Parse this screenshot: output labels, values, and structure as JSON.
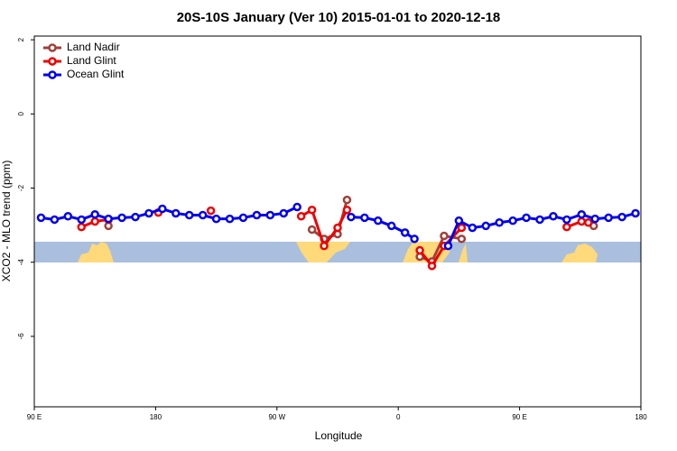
{
  "chart_data": {
    "type": "line",
    "title": "20S-10S January (Ver 10)   2015-01-01 to 2020-12-18",
    "x_label": "Longitude",
    "y_label": "XCO2 - MLO trend (ppm)",
    "xlim": [
      90,
      540
    ],
    "xticks": [
      {
        "value": 90,
        "label": "90 E"
      },
      180,
      {
        "value": 270,
        "label": "90 W"
      },
      {
        "value": 360,
        "label": "0"
      },
      {
        "value": 450,
        "label": "90 E"
      },
      {
        "value": 540,
        "label": "180"
      }
    ],
    "ylim": [
      -7.9,
      2.1
    ],
    "yticks": [
      2,
      0,
      -2,
      -4,
      -6
    ],
    "legend": "top-left",
    "series": [
      {
        "name": "Land Nadir",
        "color": "#a0403a",
        "x": [
          145,
          null,
          296,
          305,
          315,
          322,
          null,
          376,
          385,
          394,
          407,
          null,
          505
        ],
        "values": [
          -3.02,
          null,
          -3.12,
          -3.37,
          -3.24,
          -2.32,
          null,
          -3.85,
          -3.98,
          -3.29,
          -3.37,
          null,
          -3.02
        ]
      },
      {
        "name": "Land Glint",
        "color": "#ee0000",
        "x": [
          125,
          135,
          145,
          null,
          182,
          null,
          221,
          null,
          288,
          296,
          305,
          315,
          322,
          null,
          376,
          385,
          394,
          407,
          null,
          485,
          496,
          501
        ],
        "values": [
          -3.05,
          -2.9,
          -2.85,
          null,
          -2.66,
          null,
          -2.61,
          null,
          -2.76,
          -2.59,
          -3.56,
          -3.07,
          -2.59,
          null,
          -3.68,
          -4.1,
          -3.56,
          -3.07,
          null,
          -3.05,
          -2.9,
          -2.93
        ]
      },
      {
        "name": "Ocean Glint",
        "color": "#0000ee",
        "x": [
          95,
          105,
          115,
          125,
          135,
          145,
          155,
          165,
          175,
          185,
          195,
          205,
          215,
          225,
          235,
          245,
          255,
          265,
          275,
          285,
          null,
          325,
          335,
          345,
          355,
          365,
          372,
          null,
          397,
          405,
          415,
          425,
          435,
          445,
          455,
          465,
          475,
          485,
          496,
          506,
          516,
          526,
          536
        ],
        "values": [
          -2.8,
          -2.85,
          -2.76,
          -2.85,
          -2.71,
          -2.83,
          -2.8,
          -2.78,
          -2.68,
          -2.56,
          -2.68,
          -2.73,
          -2.73,
          -2.83,
          -2.83,
          -2.8,
          -2.73,
          -2.73,
          -2.68,
          -2.51,
          null,
          -2.78,
          -2.8,
          -2.88,
          -3.02,
          -3.2,
          -3.37,
          null,
          -3.56,
          -2.88,
          -3.07,
          -3.02,
          -2.93,
          -2.88,
          -2.8,
          -2.85,
          -2.76,
          -2.85,
          -2.71,
          -2.83,
          -2.8,
          -2.78,
          -2.68
        ]
      }
    ]
  }
}
